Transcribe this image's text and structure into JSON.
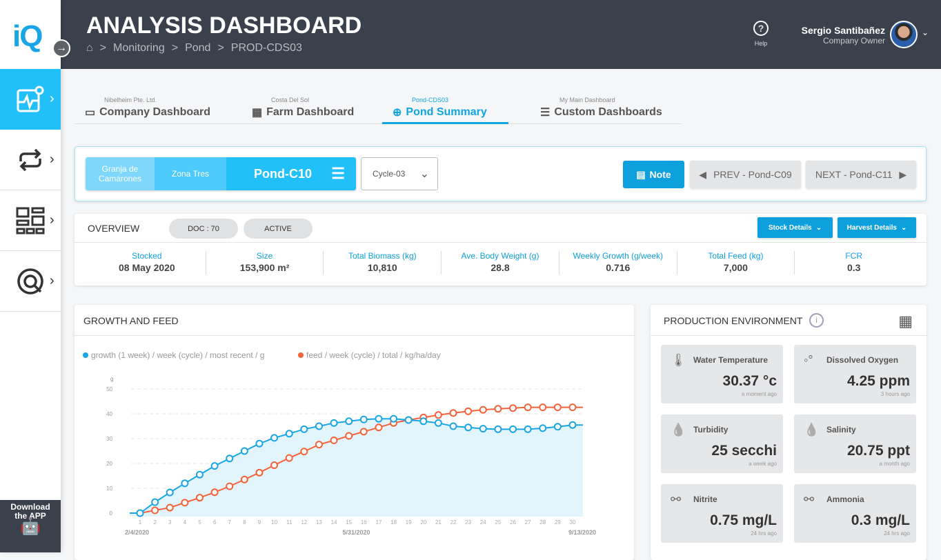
{
  "app": {
    "logo": "iQ",
    "title": "ANALYSIS DASHBOARD",
    "download": "Download the APP"
  },
  "breadcrumb": [
    "Monitoring",
    "Pond",
    "PROD-CDS03"
  ],
  "header": {
    "help": "Help",
    "user_name": "Sergio Santibañez",
    "user_role": "Company Owner"
  },
  "tabs": [
    {
      "sub": "Nibelheim Pte. Ltd.",
      "label": "Company Dashboard",
      "icon": "briefcase-icon"
    },
    {
      "sub": "Costa Del Sol",
      "label": "Farm Dashboard",
      "icon": "grid-icon"
    },
    {
      "sub": "Pond-CDS03",
      "label": "Pond Summary",
      "icon": "crosshair-icon",
      "active": true
    },
    {
      "sub": "My Main Dashboard",
      "label": "Custom Dashboards",
      "icon": "server-icon"
    }
  ],
  "selector": {
    "farm": "Granja de Camarones",
    "zone": "Zona Tres",
    "pond": "Pond-C10",
    "cycle": "Cycle-03",
    "note": "Note",
    "prev": "PREV - Pond-C09",
    "next": "NEXT - Pond-C11"
  },
  "overview": {
    "title": "OVERVIEW",
    "doc": "DOC : 70",
    "status": "ACTIVE",
    "stock_details": "Stock Details",
    "harvest_details": "Harvest Details",
    "stats": [
      {
        "label": "Stocked",
        "value": "08 May 2020"
      },
      {
        "label": "Size",
        "value": "153,900 m²"
      },
      {
        "label": "Total Biomass (kg)",
        "value": "10,810"
      },
      {
        "label": "Ave. Body Weight (g)",
        "value": "28.8"
      },
      {
        "label": "Weekly Growth (g/week)",
        "value": "0.716"
      },
      {
        "label": "Total Feed (kg)",
        "value": "7,000"
      },
      {
        "label": "FCR",
        "value": "0.3"
      }
    ]
  },
  "growth_card": {
    "title": "GROWTH AND FEED"
  },
  "chart_data": {
    "type": "line",
    "ylabel": "g",
    "ylim": [
      0,
      50
    ],
    "yticks": [
      0,
      10,
      20,
      30,
      40,
      50
    ],
    "x": [
      1,
      2,
      3,
      4,
      5,
      6,
      7,
      8,
      9,
      10,
      11,
      12,
      13,
      14,
      15,
      16,
      17,
      18,
      19,
      20,
      21,
      22,
      23,
      24,
      25,
      26,
      27,
      28,
      29,
      30
    ],
    "date_labels": [
      "2/4/2020",
      "5/31/2020",
      "9/13/2020"
    ],
    "series": [
      {
        "name": "growth (1 week) / week (cycle) / most recent / g",
        "color": "#1aa6e4",
        "values": [
          0,
          4.4,
          8.3,
          12,
          15.5,
          19,
          22,
          25,
          28,
          30.3,
          32,
          33.8,
          35,
          36.3,
          37,
          37.7,
          38,
          38,
          37.5,
          37,
          36.3,
          35,
          34.5,
          34,
          33.8,
          33.8,
          33.8,
          34.2,
          34.8,
          35.5
        ]
      },
      {
        "name": "feed / week (cycle) / total / kg/ha/day",
        "color": "#f4623a",
        "values": [
          0,
          1.1,
          2.2,
          4.2,
          6.2,
          8.4,
          10.8,
          13.5,
          16.3,
          19.3,
          22.2,
          24.8,
          27.6,
          29.3,
          31.1,
          32.8,
          34.5,
          36.3,
          37.5,
          38.5,
          39.5,
          40.3,
          41,
          41.6,
          42,
          42.3,
          42.6,
          42.6,
          42.6,
          42.6
        ]
      }
    ]
  },
  "environment": {
    "title": "PRODUCTION ENVIRONMENT",
    "items": [
      {
        "name": "Water Temperature",
        "value": "30.37 °c",
        "ago": "a moment ago",
        "icon": "thermometer-icon"
      },
      {
        "name": "Dissolved Oxygen",
        "value": "4.25 ppm",
        "ago": "3 hours ago",
        "icon": "bubbles-icon"
      },
      {
        "name": "Turbidity",
        "value": "25 secchi",
        "ago": "a week ago",
        "icon": "drop-icon"
      },
      {
        "name": "Salinity",
        "value": "20.75 ppt",
        "ago": "a month ago",
        "icon": "drop-icon"
      },
      {
        "name": "Nitrite",
        "value": "0.75 mg/L",
        "ago": "24 hrs ago",
        "icon": "molecule-icon"
      },
      {
        "name": "Ammonia",
        "value": "0.3 mg/L",
        "ago": "24 hrs ago",
        "icon": "molecule-icon"
      }
    ]
  }
}
